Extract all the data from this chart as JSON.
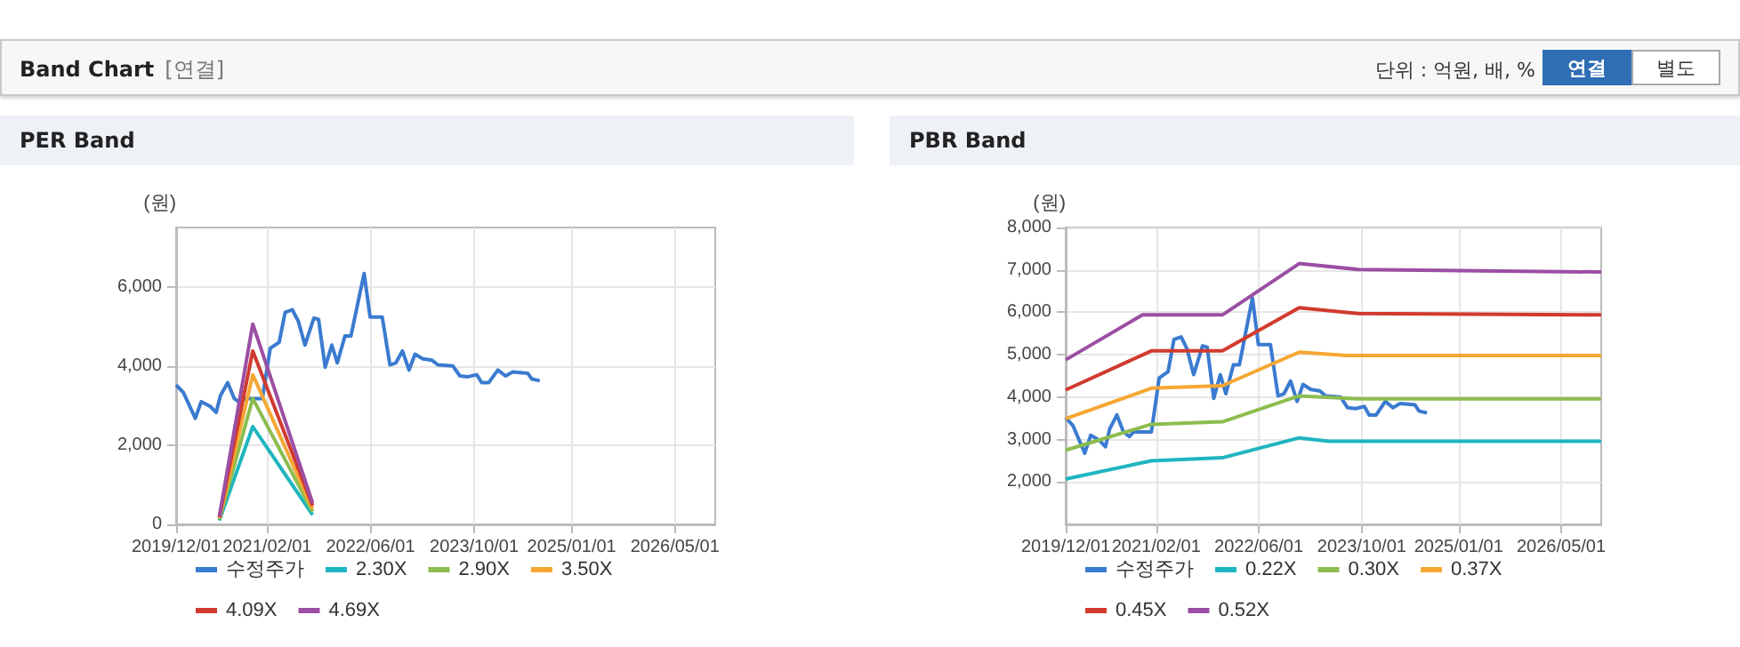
{
  "chart_data": [
    {
      "type": "other",
      "title": "Band Chart",
      "annotations": [
        "[연결]",
        "단위 : 억원, 배, %",
        "연결",
        "별도"
      ]
    },
    {
      "type": "line",
      "title": "PER Band",
      "ylabel": "(원)",
      "xlim": [
        "2019-12-01",
        "2026-11-06"
      ],
      "xticks": [
        {
          "value": "2019-12-01",
          "label": "2019/12/01"
        },
        {
          "value": "2021-02-01",
          "label": "2021/02/01"
        },
        {
          "value": "2022-06-01",
          "label": "2022/06/01"
        },
        {
          "value": "2023-10-01",
          "label": "2023/10/01"
        },
        {
          "value": "2025-01-01",
          "label": "2025/01/01"
        },
        {
          "value": "2026-05-01",
          "label": "2026/05/01"
        }
      ],
      "ylim": [
        0,
        7500
      ],
      "yticks": [
        {
          "value": 0,
          "label": "0"
        },
        {
          "value": 2000,
          "label": "2,000"
        },
        {
          "value": 4000,
          "label": "4,000"
        },
        {
          "value": 6000,
          "label": "6,000"
        }
      ],
      "grid": true,
      "legend": "bottom",
      "marker": "none",
      "series": [
        {
          "name": "수정주가",
          "color": "#3a7bd0",
          "x": [
            "2019-12-01",
            "2020-01-04",
            "2020-02-29",
            "2020-03-28",
            "2020-05-09",
            "2020-06-06",
            "2020-06-26",
            "2020-07-30",
            "2020-08-30",
            "2020-09-27",
            "2020-10-17",
            "2021-01-09",
            "2021-02-15",
            "2021-03-29",
            "2021-04-26",
            "2021-05-30",
            "2021-06-27",
            "2021-07-28",
            "2021-09-08",
            "2021-09-30",
            "2021-10-31",
            "2021-12-01",
            "2021-12-27",
            "2022-02-01",
            "2022-03-01",
            "2022-05-02",
            "2022-05-30",
            "2022-07-26",
            "2022-08-31",
            "2022-09-28",
            "2022-10-29",
            "2022-11-29",
            "2022-12-27",
            "2023-02-02",
            "2023-03-16",
            "2023-04-13",
            "2023-06-23",
            "2023-07-26",
            "2023-09-01",
            "2023-10-13",
            "2023-11-05",
            "2023-12-08",
            "2024-01-20",
            "2024-02-25",
            "2024-03-30",
            "2024-06-08",
            "2024-06-28",
            "2024-08-04"
          ],
          "values": [
            3520,
            3330,
            2680,
            3100,
            2980,
            2830,
            3250,
            3580,
            3180,
            3070,
            3180,
            3180,
            4450,
            4600,
            5360,
            5420,
            5130,
            4530,
            5210,
            5180,
            3970,
            4530,
            4080,
            4760,
            4760,
            6340,
            5240,
            5240,
            4030,
            4080,
            4380,
            3900,
            4300,
            4180,
            4150,
            4030,
            4000,
            3750,
            3730,
            3780,
            3580,
            3580,
            3900,
            3750,
            3850,
            3820,
            3670,
            3630
          ]
        },
        {
          "name": "2.30X",
          "color": "#1fb5c0",
          "x": [
            "2020-06-21",
            "2020-11-25",
            "2021-09-02"
          ],
          "values": [
            100,
            2470,
            240
          ]
        },
        {
          "name": "2.90X",
          "color": "#8cbd4f",
          "x": [
            "2020-06-21",
            "2020-11-25",
            "2021-09-02"
          ],
          "values": [
            130,
            3180,
            320
          ]
        },
        {
          "name": "3.50X",
          "color": "#f5a733",
          "x": [
            "2020-06-21",
            "2020-11-25",
            "2021-09-02"
          ],
          "values": [
            150,
            3780,
            390
          ]
        },
        {
          "name": "4.09X",
          "color": "#d13a2e",
          "x": [
            "2020-06-21",
            "2020-11-25",
            "2021-09-02"
          ],
          "values": [
            180,
            4380,
            470
          ]
        },
        {
          "name": "4.69X",
          "color": "#9b4ea3",
          "x": [
            "2020-06-21",
            "2020-11-25",
            "2021-09-02"
          ],
          "values": [
            200,
            5060,
            540
          ]
        }
      ]
    },
    {
      "type": "line",
      "title": "PBR Band",
      "ylabel": "(원)",
      "xlim": [
        "2019-12-01",
        "2026-11-06"
      ],
      "xticks": [
        {
          "value": "2019-12-01",
          "label": "2019/12/01"
        },
        {
          "value": "2021-02-01",
          "label": "2021/02/01"
        },
        {
          "value": "2022-06-01",
          "label": "2022/06/01"
        },
        {
          "value": "2023-10-01",
          "label": "2023/10/01"
        },
        {
          "value": "2025-01-01",
          "label": "2025/01/01"
        },
        {
          "value": "2026-05-01",
          "label": "2026/05/01"
        }
      ],
      "ylim": [
        1000,
        8000
      ],
      "yticks": [
        {
          "value": 2000,
          "label": "2,000"
        },
        {
          "value": 3000,
          "label": "3,000"
        },
        {
          "value": 4000,
          "label": "4,000"
        },
        {
          "value": 5000,
          "label": "5,000"
        },
        {
          "value": 6000,
          "label": "6,000"
        },
        {
          "value": 7000,
          "label": "7,000"
        },
        {
          "value": 8000,
          "label": "8,000"
        }
      ],
      "grid": true,
      "legend": "bottom",
      "marker": "none",
      "series": [
        {
          "name": "수정주가",
          "color": "#3a7bd0",
          "x": [
            "2019-12-01",
            "2020-01-04",
            "2020-02-29",
            "2020-03-28",
            "2020-05-09",
            "2020-06-06",
            "2020-06-26",
            "2020-07-30",
            "2020-08-30",
            "2020-09-27",
            "2020-10-17",
            "2021-01-09",
            "2021-02-15",
            "2021-03-29",
            "2021-04-26",
            "2021-05-30",
            "2021-06-27",
            "2021-07-28",
            "2021-09-08",
            "2021-09-30",
            "2021-10-31",
            "2021-12-01",
            "2021-12-27",
            "2022-02-01",
            "2022-03-01",
            "2022-05-02",
            "2022-05-30",
            "2022-07-26",
            "2022-08-31",
            "2022-09-28",
            "2022-10-29",
            "2022-11-29",
            "2022-12-27",
            "2023-02-02",
            "2023-03-16",
            "2023-04-13",
            "2023-06-23",
            "2023-07-26",
            "2023-09-01",
            "2023-10-13",
            "2023-11-05",
            "2023-12-08",
            "2024-01-20",
            "2024-02-25",
            "2024-03-30",
            "2024-06-08",
            "2024-06-28",
            "2024-08-04"
          ],
          "values": [
            3520,
            3330,
            2680,
            3100,
            2980,
            2830,
            3250,
            3580,
            3180,
            3070,
            3180,
            3180,
            4450,
            4600,
            5360,
            5420,
            5130,
            4530,
            5210,
            5180,
            3970,
            4530,
            4080,
            4760,
            4760,
            6340,
            5240,
            5240,
            4030,
            4080,
            4380,
            3900,
            4300,
            4180,
            4150,
            4030,
            4000,
            3750,
            3730,
            3780,
            3580,
            3580,
            3900,
            3750,
            3850,
            3820,
            3670,
            3630
          ]
        },
        {
          "name": "0.22X",
          "color": "#1fb5c0",
          "x": [
            "2019-12-01",
            "2021-01-09",
            "2021-12-11",
            "2022-12-09",
            "2023-04-28",
            "2026-11-06"
          ],
          "values": [
            2070,
            2500,
            2570,
            3040,
            2960,
            2960
          ]
        },
        {
          "name": "0.30X",
          "color": "#8cbd4f",
          "x": [
            "2019-12-01",
            "2021-01-09",
            "2021-12-11",
            "2022-12-09",
            "2023-09-15",
            "2026-11-06"
          ],
          "values": [
            2750,
            3360,
            3420,
            4030,
            3960,
            3960
          ]
        },
        {
          "name": "0.37X",
          "color": "#f5a733",
          "x": [
            "2019-12-01",
            "2021-01-09",
            "2021-12-11",
            "2022-12-09",
            "2023-07-21",
            "2026-11-06"
          ],
          "values": [
            3490,
            4210,
            4270,
            5060,
            4980,
            4980
          ]
        },
        {
          "name": "0.45X",
          "color": "#d13a2e",
          "x": [
            "2019-12-01",
            "2021-01-09",
            "2021-12-11",
            "2022-12-09",
            "2023-09-15",
            "2026-11-06"
          ],
          "values": [
            4170,
            5090,
            5090,
            6110,
            5970,
            5940
          ]
        },
        {
          "name": "0.52X",
          "color": "#9b4ea3",
          "x": [
            "2019-12-01",
            "2020-11-28",
            "2021-12-11",
            "2022-12-09",
            "2023-09-15",
            "2026-11-06"
          ],
          "values": [
            4880,
            5940,
            5940,
            7150,
            7010,
            6950
          ]
        }
      ]
    }
  ]
}
